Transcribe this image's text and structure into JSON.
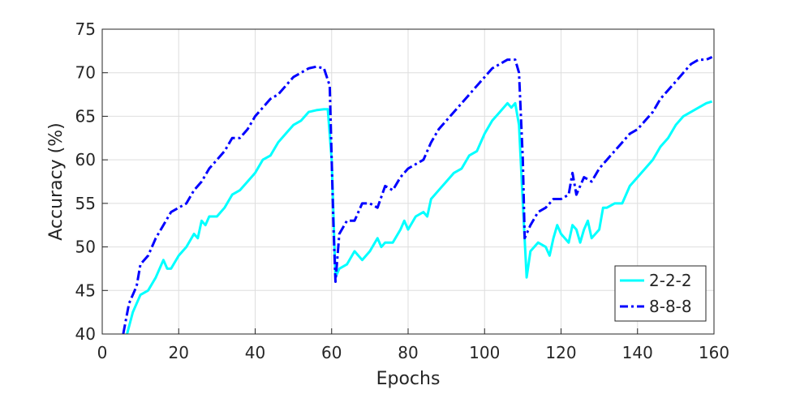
{
  "chart_data": {
    "type": "line",
    "xlabel": "Epochs",
    "ylabel": "Accuracy (%)",
    "xlim": [
      0,
      160
    ],
    "xticks": [
      0,
      20,
      40,
      60,
      80,
      100,
      120,
      140,
      160
    ],
    "ylim": [
      40,
      75
    ],
    "yticks": [
      40,
      45,
      50,
      55,
      60,
      65,
      70,
      75
    ],
    "grid": true,
    "legend": "lower right",
    "series": [
      {
        "name": "2-2-2",
        "color": "#00ffff",
        "dash": false,
        "x": [
          6.5,
          8,
          10,
          12,
          14,
          16,
          17,
          18,
          20,
          22,
          24,
          25,
          26,
          27,
          28,
          30,
          32,
          34,
          36,
          38,
          40,
          42,
          44,
          46,
          48,
          50,
          52,
          54,
          56,
          58,
          59,
          60,
          61,
          62,
          64,
          66,
          68,
          70,
          72,
          73,
          74,
          76,
          78,
          79,
          80,
          82,
          84,
          85,
          86,
          88,
          90,
          92,
          94,
          96,
          98,
          100,
          102,
          104,
          106,
          107,
          108,
          109,
          110,
          111,
          112,
          114,
          116,
          117,
          118,
          119,
          120,
          122,
          123,
          124,
          125,
          126,
          127,
          128,
          130,
          131,
          132,
          134,
          136,
          138,
          140,
          142,
          144,
          146,
          148,
          150,
          152,
          154,
          156,
          158,
          159.5
        ],
        "values": [
          40,
          42.5,
          44.5,
          45,
          46.5,
          48.5,
          47.5,
          47.5,
          49,
          50,
          51.5,
          51,
          53,
          52.5,
          53.5,
          53.5,
          54.5,
          56,
          56.5,
          57.5,
          58.5,
          60,
          60.5,
          62,
          63,
          64,
          64.5,
          65.5,
          65.7,
          65.8,
          65.8,
          60,
          46.5,
          47.5,
          48,
          49.5,
          48.5,
          49.5,
          51,
          50,
          50.5,
          50.5,
          52,
          53,
          52,
          53.5,
          54,
          53.5,
          55.5,
          56.5,
          57.5,
          58.5,
          59,
          60.5,
          61,
          63,
          64.5,
          65.5,
          66.5,
          66,
          66.5,
          64,
          55,
          46.5,
          49.5,
          50.5,
          50,
          49,
          51,
          52.5,
          51.5,
          50.5,
          52.5,
          52,
          50.5,
          52,
          53,
          51,
          52,
          54.5,
          54.5,
          55,
          55,
          57,
          58,
          59,
          60,
          61.5,
          62.5,
          64,
          65,
          65.5,
          66,
          66.5,
          66.7
        ]
      },
      {
        "name": "8-8-8",
        "color": "#0000ff",
        "dash": true,
        "x": [
          5.5,
          7,
          9,
          10,
          12,
          14,
          16,
          18,
          20,
          22,
          24,
          26,
          28,
          30,
          32,
          34,
          36,
          38,
          40,
          42,
          44,
          46,
          48,
          50,
          52,
          54,
          56,
          58,
          59.5,
          60.5,
          61,
          62,
          64,
          66,
          68,
          70,
          72,
          74,
          76,
          78,
          80,
          82,
          84,
          86,
          88,
          90,
          92,
          94,
          96,
          98,
          100,
          102,
          104,
          106,
          108,
          109,
          110,
          110.5,
          112,
          114,
          116,
          118,
          120,
          122,
          123,
          124,
          126,
          128,
          130,
          132,
          134,
          136,
          138,
          140,
          142,
          144,
          146,
          148,
          150,
          152,
          154,
          156,
          158,
          159.5
        ],
        "values": [
          40,
          43.5,
          45.5,
          48,
          49,
          51,
          52.5,
          54,
          54.5,
          55,
          56.5,
          57.5,
          59,
          60,
          61,
          62.5,
          62.5,
          63.5,
          65,
          66,
          67,
          67.5,
          68.5,
          69.5,
          70,
          70.5,
          70.7,
          70.5,
          68.5,
          52,
          46,
          51.5,
          53,
          53,
          55,
          55,
          54.5,
          57,
          56.5,
          58,
          59,
          59.5,
          60,
          62,
          63.5,
          64.5,
          65.5,
          66.5,
          67.5,
          68.5,
          69.5,
          70.5,
          71,
          71.5,
          71.5,
          70,
          60,
          51,
          52.5,
          54,
          54.5,
          55.5,
          55.5,
          56,
          58.5,
          56,
          58,
          57.5,
          59,
          60,
          61,
          62,
          63,
          63.5,
          64.5,
          65.5,
          67,
          68,
          69,
          70,
          71,
          71.5,
          71.5,
          71.8
        ]
      }
    ]
  }
}
